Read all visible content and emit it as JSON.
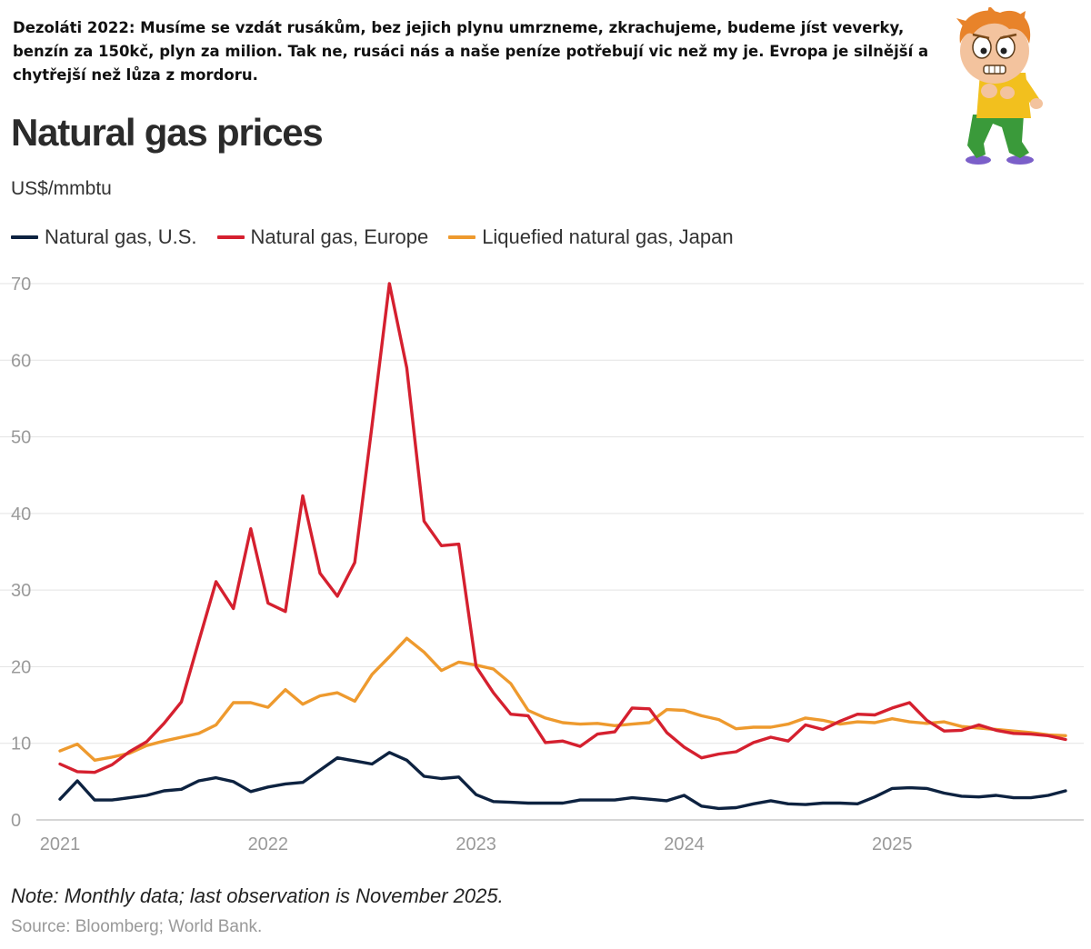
{
  "caption": "Dezoláti 2022: Musíme se vzdát rusákům, bez jejich plynu umrzneme, zkrachujeme, budeme jíst veverky, benzín za 150kč, plyn za milion. Tak ne, rusáci nás a naše peníze potřebují vic než my je. Evropa je silnější a chytřejší než lůza z mordoru.",
  "note": "Note: Monthly data; last observation is November 2025.",
  "source": "Source: Bloomberg; World Bank.",
  "colors": {
    "us": "#0d2240",
    "europe": "#d5202f",
    "japan": "#ee9a2e",
    "grid": "#e3e3e3",
    "tick": "#9a9a9a"
  },
  "chart_data": {
    "type": "line",
    "title": "Natural gas prices",
    "ylabel": "US$/mmbtu",
    "x_start": "2021-01",
    "x_end": "2025-11",
    "x_ticks": [
      "2021",
      "2022",
      "2023",
      "2024",
      "2025"
    ],
    "y_ticks": [
      0,
      10,
      20,
      30,
      40,
      50,
      60,
      70
    ],
    "ylim": [
      0,
      70
    ],
    "grid": true,
    "legend_position": "top-left",
    "series": [
      {
        "name": "Natural gas, U.S.",
        "color": "#0d2240",
        "values": [
          2.7,
          5.1,
          2.6,
          2.6,
          2.9,
          3.2,
          3.8,
          4.0,
          5.1,
          5.5,
          5.0,
          3.7,
          4.3,
          4.7,
          4.9,
          6.5,
          8.1,
          7.7,
          7.3,
          8.8,
          7.8,
          5.7,
          5.4,
          5.6,
          3.3,
          2.4,
          2.3,
          2.2,
          2.2,
          2.2,
          2.6,
          2.6,
          2.6,
          2.9,
          2.7,
          2.5,
          3.2,
          1.8,
          1.5,
          1.6,
          2.1,
          2.5,
          2.1,
          2.0,
          2.2,
          2.2,
          2.1,
          3.0,
          4.1,
          4.2,
          4.1,
          3.5,
          3.1,
          3.0,
          3.2,
          2.9,
          2.9,
          3.2,
          3.8
        ]
      },
      {
        "name": "Natural gas, Europe",
        "color": "#d5202f",
        "values": [
          7.3,
          6.3,
          6.2,
          7.2,
          8.9,
          10.2,
          12.6,
          15.4,
          23.3,
          31.1,
          27.6,
          38.0,
          28.3,
          27.2,
          42.3,
          32.2,
          29.2,
          33.6,
          51.5,
          70.0,
          59.0,
          39.0,
          35.8,
          36.0,
          20.0,
          16.6,
          13.8,
          13.6,
          10.1,
          10.3,
          9.6,
          11.2,
          11.5,
          14.6,
          14.5,
          11.4,
          9.5,
          8.1,
          8.6,
          8.9,
          10.1,
          10.8,
          10.3,
          12.4,
          11.8,
          12.9,
          13.8,
          13.7,
          14.6,
          15.3,
          13.0,
          11.6,
          11.7,
          12.4,
          11.7,
          11.3,
          11.2,
          11.0,
          10.5
        ]
      },
      {
        "name": "Liquefied natural gas, Japan",
        "color": "#ee9a2e",
        "values": [
          9.0,
          9.9,
          7.8,
          8.2,
          8.7,
          9.7,
          10.3,
          10.8,
          11.3,
          12.4,
          15.3,
          15.3,
          14.7,
          17.0,
          15.1,
          16.2,
          16.6,
          15.5,
          19.0,
          21.3,
          23.7,
          21.9,
          19.5,
          20.6,
          20.2,
          19.7,
          17.8,
          14.3,
          13.3,
          12.7,
          12.5,
          12.6,
          12.3,
          12.5,
          12.7,
          14.4,
          14.3,
          13.6,
          13.1,
          11.9,
          12.1,
          12.1,
          12.5,
          13.3,
          13.0,
          12.5,
          12.8,
          12.7,
          13.2,
          12.8,
          12.6,
          12.8,
          12.2,
          12.0,
          11.8,
          11.6,
          11.4,
          11.1,
          11.0
        ]
      }
    ]
  }
}
